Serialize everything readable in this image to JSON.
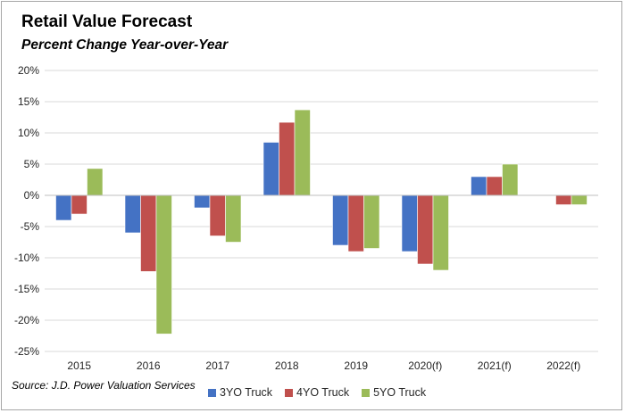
{
  "chart_data": {
    "type": "bar",
    "title": "Retail Value Forecast",
    "subtitle": "Percent Change Year-over-Year",
    "source": "Source: J.D. Power Valuation Services",
    "categories": [
      "2015",
      "2016",
      "2017",
      "2018",
      "2019",
      "2020(f)",
      "2021(f)",
      "2022(f)"
    ],
    "series": [
      {
        "name": "3YO Truck",
        "color": "#4472c4",
        "values": [
          -4.0,
          -6.0,
          -2.0,
          8.5,
          -8.0,
          -9.0,
          3.0,
          0.0
        ]
      },
      {
        "name": "4YO Truck",
        "color": "#c0504d",
        "values": [
          -3.0,
          -12.2,
          -6.5,
          11.7,
          -9.0,
          -11.0,
          3.0,
          -1.5
        ]
      },
      {
        "name": "5YO Truck",
        "color": "#9bbb59",
        "values": [
          4.3,
          -22.2,
          -7.5,
          13.7,
          -8.5,
          -12.0,
          5.0,
          -1.5
        ]
      }
    ],
    "yticks": [
      "20%",
      "15%",
      "10%",
      "5%",
      "0%",
      "-5%",
      "-10%",
      "-15%",
      "-20%",
      "-25%"
    ],
    "ylim": [
      -25,
      20
    ],
    "xlabel": "",
    "ylabel": "",
    "grid": true,
    "legend_position": "bottom"
  }
}
